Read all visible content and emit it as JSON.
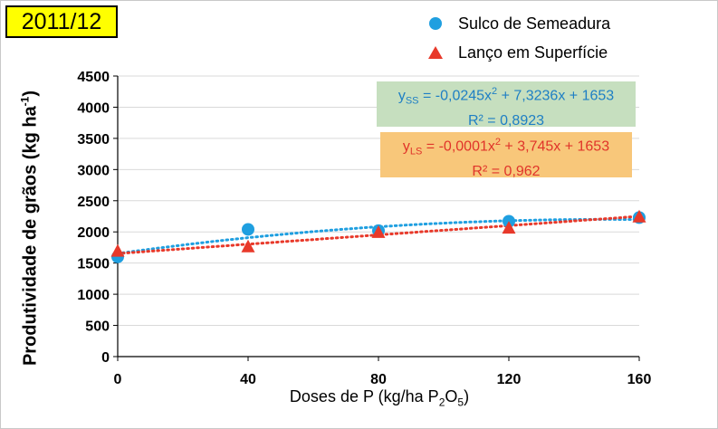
{
  "year_badge": "2011/12",
  "chart_data": {
    "type": "scatter",
    "title": "2011/12",
    "xlabel": "Doses de P (kg/ha P2O5)",
    "ylabel": "Produtividade de grãos (kg ha-1)",
    "x": [
      0,
      40,
      80,
      120,
      160
    ],
    "xlim": [
      0,
      160
    ],
    "ylim": [
      0,
      4500
    ],
    "xticks": [
      0,
      40,
      80,
      120,
      160
    ],
    "yticks": [
      0,
      500,
      1000,
      1500,
      2000,
      2500,
      3000,
      3500,
      4000,
      4500
    ],
    "grid": "horizontal",
    "series": [
      {
        "name": "Sulco de Semeadura",
        "marker": "circle",
        "color": "#1f9fe0",
        "values": [
          1600,
          2040,
          2020,
          2170,
          2230
        ],
        "trendline": {
          "a": -0.0245,
          "b": 7.3236,
          "c": 1653
        },
        "equation": "y",
        "equation_sub": "SS",
        "equation_rest": " = -0,0245x",
        "equation_sup": "2",
        "equation_tail": " + 7,3236x + 1653",
        "r2": "R² = 0,8923"
      },
      {
        "name": "Lanço em Superfície",
        "marker": "triangle",
        "color": "#e8392a",
        "values": [
          1690,
          1760,
          1990,
          2060,
          2240
        ],
        "trendline": {
          "a": -0.0001,
          "b": 3.745,
          "c": 1653
        },
        "equation": "y",
        "equation_sub": "LS",
        "equation_rest": " = -0,0001x",
        "equation_sup": "2",
        "equation_tail": " + 3,745x + 1653",
        "r2": "R² = 0,962"
      }
    ],
    "labels": {
      "ylabel_main": "Produtividade de grãos (kg ha",
      "ylabel_sup": "-1",
      "ylabel_end": ")",
      "xlabel_main": "Doses de P (kg/ha P",
      "xlabel_sub1": "2",
      "xlabel_mid": "O",
      "xlabel_sub2": "5",
      "xlabel_end": ")"
    },
    "legend_position": "top-right"
  }
}
